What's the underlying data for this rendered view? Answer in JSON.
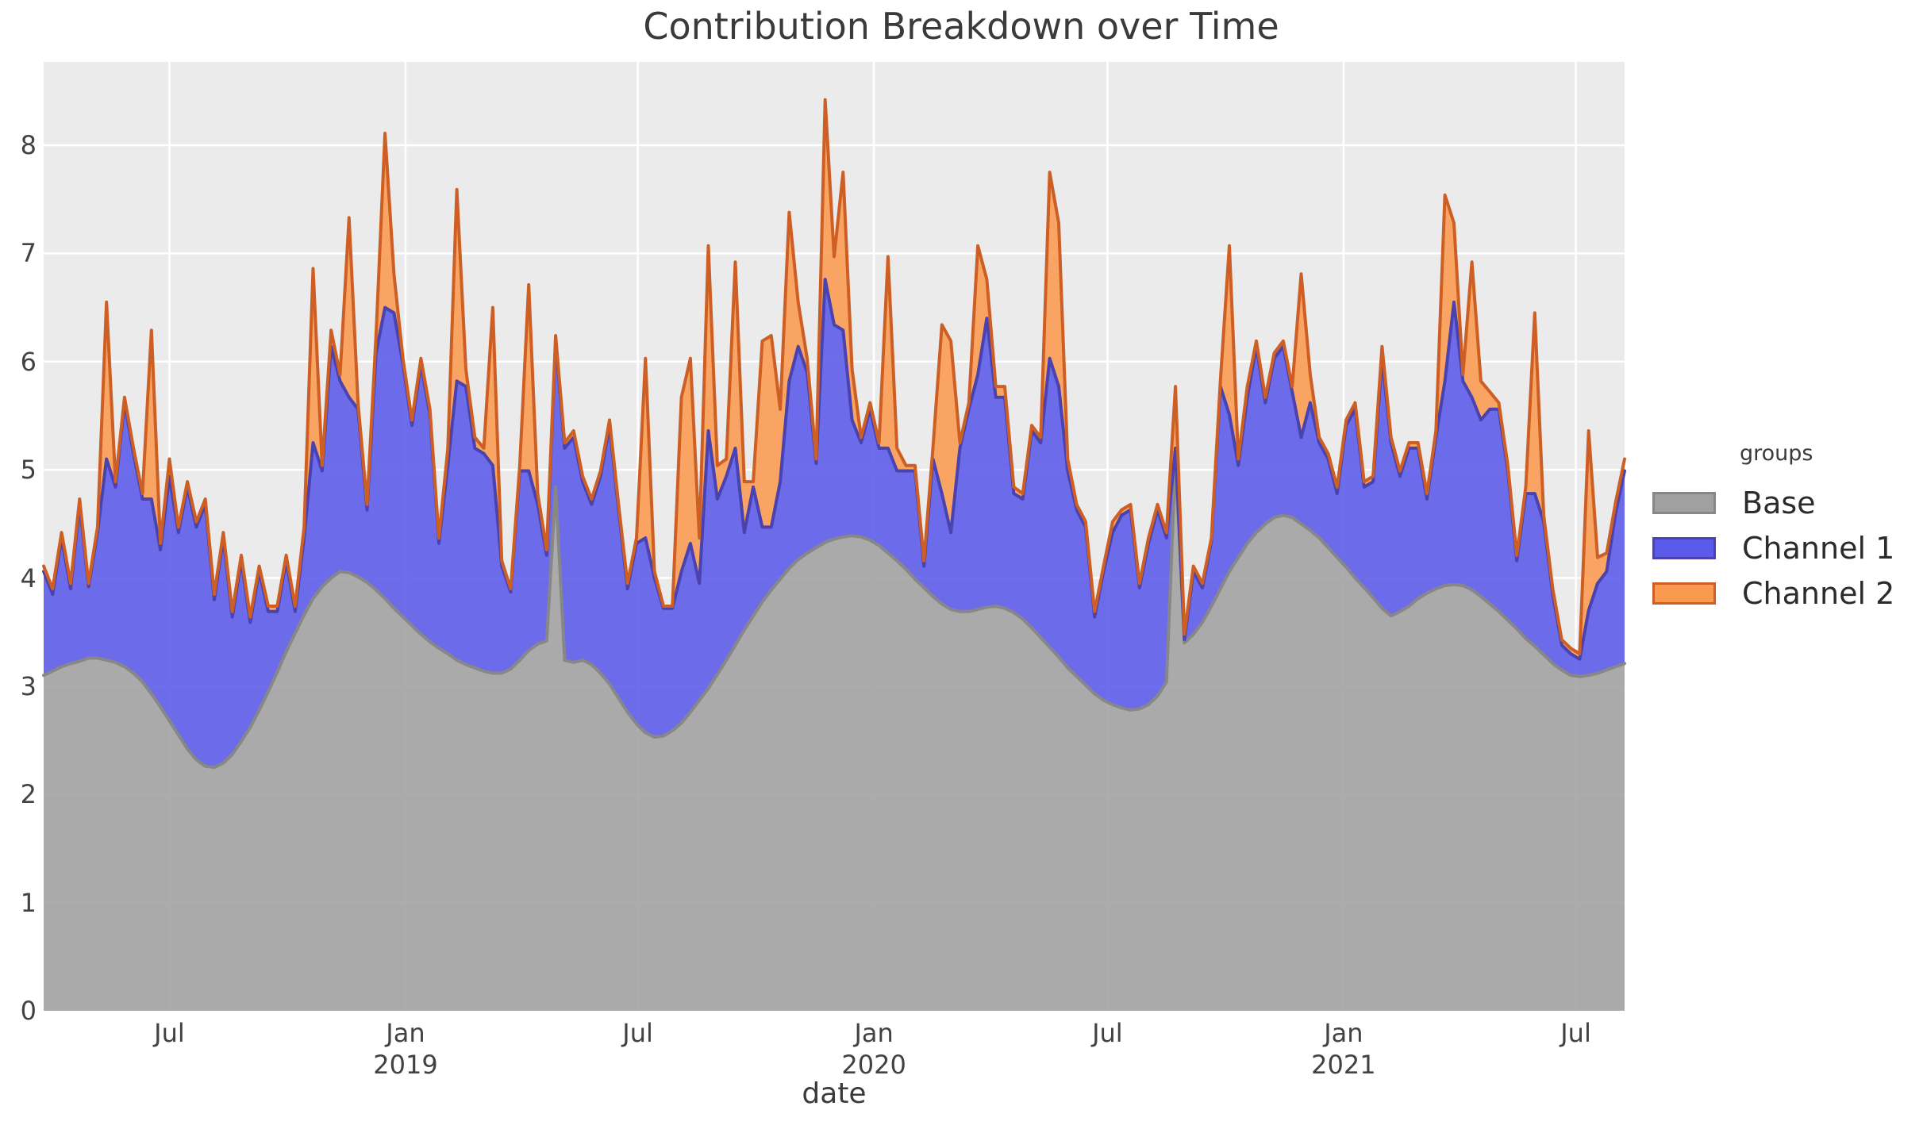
{
  "chart_data": {
    "type": "area",
    "title": "Contribution Breakdown over Time",
    "xlabel": "date",
    "legend_title": "groups",
    "stacking": "cumulative: each series value is the cumulative stack top (Base; Base+Channel1; Base+Channel1+Channel2)",
    "x_start": "2018-03-25",
    "interval_days": 7,
    "ylim": [
      0,
      8.77
    ],
    "y_ticks": [
      0,
      1,
      2,
      3,
      4,
      5,
      6,
      7,
      8
    ],
    "x_ticks": [
      {
        "label": "Jul",
        "year": "",
        "date": "2018-07-01"
      },
      {
        "label": "Jan",
        "year": "2019",
        "date": "2019-01-01"
      },
      {
        "label": "Jul",
        "year": "",
        "date": "2019-07-01"
      },
      {
        "label": "Jan",
        "year": "2020",
        "date": "2020-01-01"
      },
      {
        "label": "Jul",
        "year": "",
        "date": "2020-07-01"
      },
      {
        "label": "Jan",
        "year": "2021",
        "date": "2021-01-01"
      },
      {
        "label": "Jul",
        "year": "",
        "date": "2021-07-01"
      }
    ],
    "colors": {
      "panel": "#ebebeb",
      "grid": "#ffffff",
      "title_text": "#3a3a3a",
      "tick_text": "#424242"
    },
    "series": [
      {
        "name": "Base",
        "fill": "#a0a0a0",
        "edge": "#878787",
        "stack_top": [
          3.1,
          3.14,
          3.18,
          3.21,
          3.23,
          3.26,
          3.26,
          3.24,
          3.22,
          3.18,
          3.12,
          3.04,
          2.93,
          2.81,
          2.68,
          2.55,
          2.42,
          2.32,
          2.26,
          2.25,
          2.29,
          2.37,
          2.49,
          2.62,
          2.78,
          2.95,
          3.13,
          3.32,
          3.49,
          3.66,
          3.81,
          3.92,
          4.0,
          4.06,
          4.05,
          4.01,
          3.96,
          3.89,
          3.81,
          3.72,
          3.64,
          3.56,
          3.48,
          3.41,
          3.35,
          3.3,
          3.24,
          3.2,
          3.17,
          3.14,
          3.12,
          3.12,
          3.16,
          3.24,
          3.33,
          3.39,
          3.42,
          4.84,
          3.24,
          3.22,
          3.24,
          3.2,
          3.12,
          3.02,
          2.89,
          2.76,
          2.65,
          2.57,
          2.53,
          2.54,
          2.59,
          2.66,
          2.76,
          2.87,
          2.98,
          3.11,
          3.24,
          3.38,
          3.52,
          3.65,
          3.78,
          3.89,
          3.99,
          4.09,
          4.17,
          4.23,
          4.28,
          4.33,
          4.36,
          4.38,
          4.39,
          4.38,
          4.35,
          4.3,
          4.23,
          4.16,
          4.08,
          3.99,
          3.91,
          3.83,
          3.76,
          3.71,
          3.69,
          3.69,
          3.71,
          3.73,
          3.74,
          3.72,
          3.68,
          3.62,
          3.54,
          3.45,
          3.36,
          3.27,
          3.17,
          3.09,
          3.01,
          2.93,
          2.87,
          2.83,
          2.8,
          2.78,
          2.79,
          2.83,
          2.91,
          3.04,
          5.1,
          3.4,
          3.48,
          3.59,
          3.74,
          3.9,
          4.06,
          4.19,
          4.32,
          4.42,
          4.5,
          4.56,
          4.58,
          4.56,
          4.5,
          4.44,
          4.37,
          4.28,
          4.19,
          4.1,
          4.0,
          3.91,
          3.82,
          3.72,
          3.65,
          3.69,
          3.74,
          3.81,
          3.86,
          3.9,
          3.93,
          3.94,
          3.93,
          3.89,
          3.83,
          3.76,
          3.69,
          3.61,
          3.53,
          3.44,
          3.37,
          3.29,
          3.21,
          3.15,
          3.1,
          3.09,
          3.1,
          3.12,
          3.15,
          3.18,
          3.21
        ]
      },
      {
        "name": "Channel 1",
        "fill": "#5a5aeb",
        "edge": "#4a42ae",
        "stack_top": [
          4.06,
          3.85,
          4.37,
          3.9,
          4.68,
          3.92,
          4.42,
          5.1,
          4.84,
          5.62,
          5.15,
          4.73,
          4.73,
          4.26,
          4.94,
          4.42,
          4.84,
          4.47,
          4.68,
          3.8,
          4.37,
          3.64,
          4.16,
          3.59,
          4.06,
          3.69,
          3.69,
          4.16,
          3.69,
          4.37,
          5.25,
          4.99,
          6.14,
          5.82,
          5.67,
          5.56,
          4.63,
          6.08,
          6.5,
          6.45,
          5.98,
          5.41,
          5.98,
          5.51,
          4.32,
          5.04,
          5.82,
          5.77,
          5.2,
          5.15,
          5.04,
          4.11,
          3.87,
          4.99,
          4.99,
          4.68,
          4.21,
          6.19,
          5.2,
          5.3,
          4.89,
          4.68,
          4.94,
          5.41,
          4.63,
          3.9,
          4.32,
          4.37,
          4.0,
          3.72,
          3.72,
          4.06,
          4.32,
          3.95,
          5.36,
          4.73,
          4.94,
          5.2,
          4.42,
          4.84,
          4.47,
          4.47,
          4.89,
          5.82,
          6.14,
          5.9,
          5.06,
          6.76,
          6.34,
          6.29,
          5.46,
          5.25,
          5.56,
          5.2,
          5.2,
          4.99,
          4.99,
          4.99,
          4.11,
          5.1,
          4.78,
          4.42,
          5.2,
          5.56,
          5.88,
          6.4,
          5.67,
          5.67,
          4.78,
          4.73,
          5.36,
          5.25,
          6.03,
          5.77,
          4.99,
          4.63,
          4.47,
          3.64,
          4.06,
          4.42,
          4.58,
          4.63,
          3.91,
          4.32,
          4.63,
          4.37,
          5.2,
          3.43,
          4.06,
          3.91,
          4.34,
          5.77,
          5.51,
          5.04,
          5.67,
          6.14,
          5.62,
          6.03,
          6.14,
          5.72,
          5.3,
          5.62,
          5.25,
          5.1,
          4.78,
          5.41,
          5.56,
          4.84,
          4.89,
          6.03,
          5.25,
          4.94,
          5.2,
          5.2,
          4.73,
          5.3,
          5.82,
          6.55,
          5.82,
          5.67,
          5.46,
          5.56,
          5.56,
          4.99,
          4.16,
          4.78,
          4.78,
          4.52,
          3.85,
          3.38,
          3.3,
          3.25,
          3.7,
          3.95,
          4.06,
          4.6,
          4.99
        ]
      },
      {
        "name": "Channel 2",
        "fill": "#fa9a4e",
        "edge": "#cd5f24",
        "stack_top": [
          4.11,
          3.9,
          4.42,
          3.95,
          4.73,
          3.95,
          4.47,
          6.55,
          4.89,
          5.67,
          5.2,
          4.78,
          6.29,
          4.32,
          5.1,
          4.47,
          4.89,
          4.52,
          4.73,
          3.85,
          4.42,
          3.69,
          4.21,
          3.64,
          4.11,
          3.74,
          3.74,
          4.21,
          3.74,
          4.47,
          6.86,
          5.04,
          6.29,
          5.88,
          7.33,
          5.62,
          4.68,
          6.24,
          8.11,
          6.81,
          6.03,
          5.46,
          6.03,
          5.56,
          4.37,
          5.2,
          7.59,
          5.93,
          5.3,
          5.2,
          6.5,
          4.16,
          3.9,
          5.04,
          6.71,
          4.78,
          4.26,
          6.24,
          5.25,
          5.36,
          4.94,
          4.73,
          4.99,
          5.46,
          4.68,
          3.95,
          4.37,
          6.03,
          4.06,
          3.74,
          3.74,
          5.67,
          6.03,
          4.37,
          7.07,
          5.04,
          5.1,
          6.92,
          4.89,
          4.89,
          6.19,
          6.24,
          5.56,
          7.38,
          6.55,
          6.03,
          5.1,
          8.42,
          6.97,
          7.75,
          5.93,
          5.3,
          5.62,
          5.25,
          6.97,
          5.2,
          5.04,
          5.04,
          4.16,
          5.2,
          6.34,
          6.19,
          5.25,
          5.62,
          7.07,
          6.76,
          5.77,
          5.77,
          4.84,
          4.78,
          5.41,
          5.3,
          7.75,
          7.28,
          5.1,
          4.68,
          4.52,
          3.69,
          4.11,
          4.52,
          4.63,
          4.68,
          3.95,
          4.37,
          4.68,
          4.42,
          5.77,
          3.48,
          4.11,
          3.95,
          4.37,
          5.82,
          7.07,
          5.1,
          5.77,
          6.19,
          5.67,
          6.08,
          6.19,
          5.77,
          6.81,
          5.88,
          5.3,
          5.15,
          4.84,
          5.46,
          5.62,
          4.89,
          4.94,
          6.14,
          5.3,
          4.99,
          5.25,
          5.25,
          4.78,
          5.36,
          7.54,
          7.28,
          5.88,
          6.92,
          5.82,
          5.72,
          5.62,
          5.04,
          4.21,
          4.84,
          6.45,
          4.58,
          3.9,
          3.43,
          3.35,
          3.3,
          5.36,
          4.19,
          4.23,
          4.7,
          5.1
        ]
      }
    ]
  }
}
